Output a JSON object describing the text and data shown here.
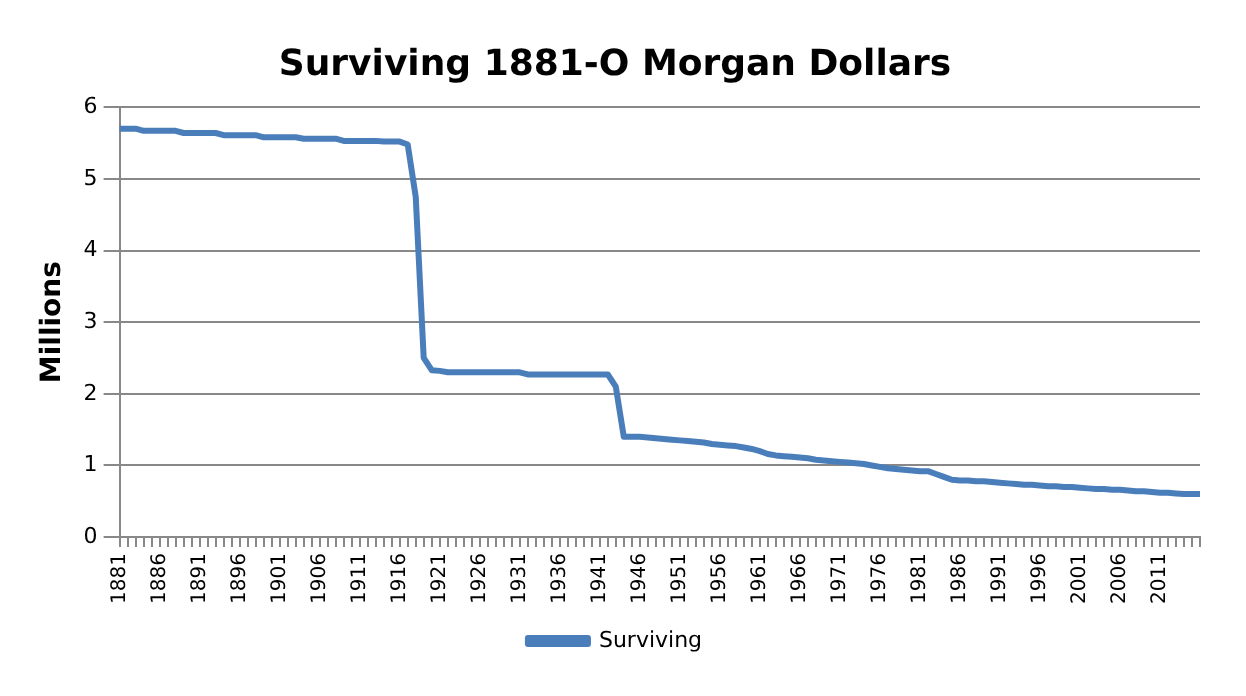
{
  "chart_data": {
    "type": "line",
    "title": "Surviving 1881-O Morgan Dollars",
    "ylabel": "Millions",
    "categories": [
      "1881",
      null,
      null,
      null,
      null,
      "1886",
      null,
      null,
      null,
      null,
      "1891",
      null,
      null,
      null,
      null,
      "1896",
      null,
      null,
      null,
      null,
      "1901",
      null,
      null,
      null,
      null,
      "1906",
      null,
      null,
      null,
      null,
      "1911",
      null,
      null,
      null,
      null,
      "1916",
      null,
      null,
      null,
      null,
      "1921",
      null,
      null,
      null,
      null,
      "1926",
      null,
      null,
      null,
      null,
      "1931",
      null,
      null,
      null,
      null,
      "1936",
      null,
      null,
      null,
      null,
      "1941",
      null,
      null,
      null,
      null,
      "1946",
      null,
      null,
      null,
      null,
      "1951",
      null,
      null,
      null,
      null,
      "1956",
      null,
      null,
      null,
      null,
      "1961",
      null,
      null,
      null,
      null,
      "1966",
      null,
      null,
      null,
      null,
      "1971",
      null,
      null,
      null,
      null,
      "1976",
      null,
      null,
      null,
      null,
      "1981",
      null,
      null,
      null,
      null,
      "1986",
      null,
      null,
      null,
      null,
      "1991",
      null,
      null,
      null,
      null,
      "1996",
      null,
      null,
      null,
      null,
      "2001",
      null,
      null,
      null,
      null,
      "2006",
      null,
      null,
      null,
      null,
      "2011",
      null,
      null,
      null,
      null,
      null
    ],
    "series": [
      {
        "name": "Surviving",
        "color": "#4a7ebb",
        "values": [
          5.7,
          5.7,
          5.7,
          5.67,
          5.67,
          5.67,
          5.67,
          5.67,
          5.64,
          5.64,
          5.64,
          5.64,
          5.64,
          5.61,
          5.61,
          5.61,
          5.61,
          5.61,
          5.58,
          5.58,
          5.58,
          5.58,
          5.58,
          5.56,
          5.56,
          5.56,
          5.56,
          5.56,
          5.53,
          5.53,
          5.53,
          5.53,
          5.53,
          5.52,
          5.52,
          5.52,
          5.48,
          4.75,
          2.5,
          2.33,
          2.32,
          2.3,
          2.3,
          2.3,
          2.3,
          2.3,
          2.3,
          2.3,
          2.3,
          2.3,
          2.3,
          2.27,
          2.27,
          2.27,
          2.27,
          2.27,
          2.27,
          2.27,
          2.27,
          2.27,
          2.27,
          2.27,
          2.1,
          1.4,
          1.4,
          1.4,
          1.39,
          1.38,
          1.37,
          1.36,
          1.35,
          1.34,
          1.33,
          1.32,
          1.3,
          1.29,
          1.28,
          1.27,
          1.25,
          1.23,
          1.2,
          1.16,
          1.14,
          1.13,
          1.12,
          1.11,
          1.1,
          1.08,
          1.07,
          1.06,
          1.05,
          1.04,
          1.03,
          1.02,
          1.0,
          0.98,
          0.96,
          0.95,
          0.94,
          0.93,
          0.92,
          0.92,
          0.88,
          0.84,
          0.8,
          0.79,
          0.79,
          0.78,
          0.78,
          0.77,
          0.76,
          0.75,
          0.74,
          0.73,
          0.73,
          0.72,
          0.71,
          0.71,
          0.7,
          0.7,
          0.69,
          0.68,
          0.67,
          0.67,
          0.66,
          0.66,
          0.65,
          0.64,
          0.64,
          0.63,
          0.62,
          0.62,
          0.61,
          0.6,
          0.6,
          0.6
        ]
      }
    ],
    "ylim": [
      0,
      6
    ],
    "yticks": [
      0,
      1,
      2,
      3,
      4,
      5,
      6
    ],
    "grid": "y",
    "legend": "bottom",
    "marker": "none",
    "line_style": "solid"
  }
}
